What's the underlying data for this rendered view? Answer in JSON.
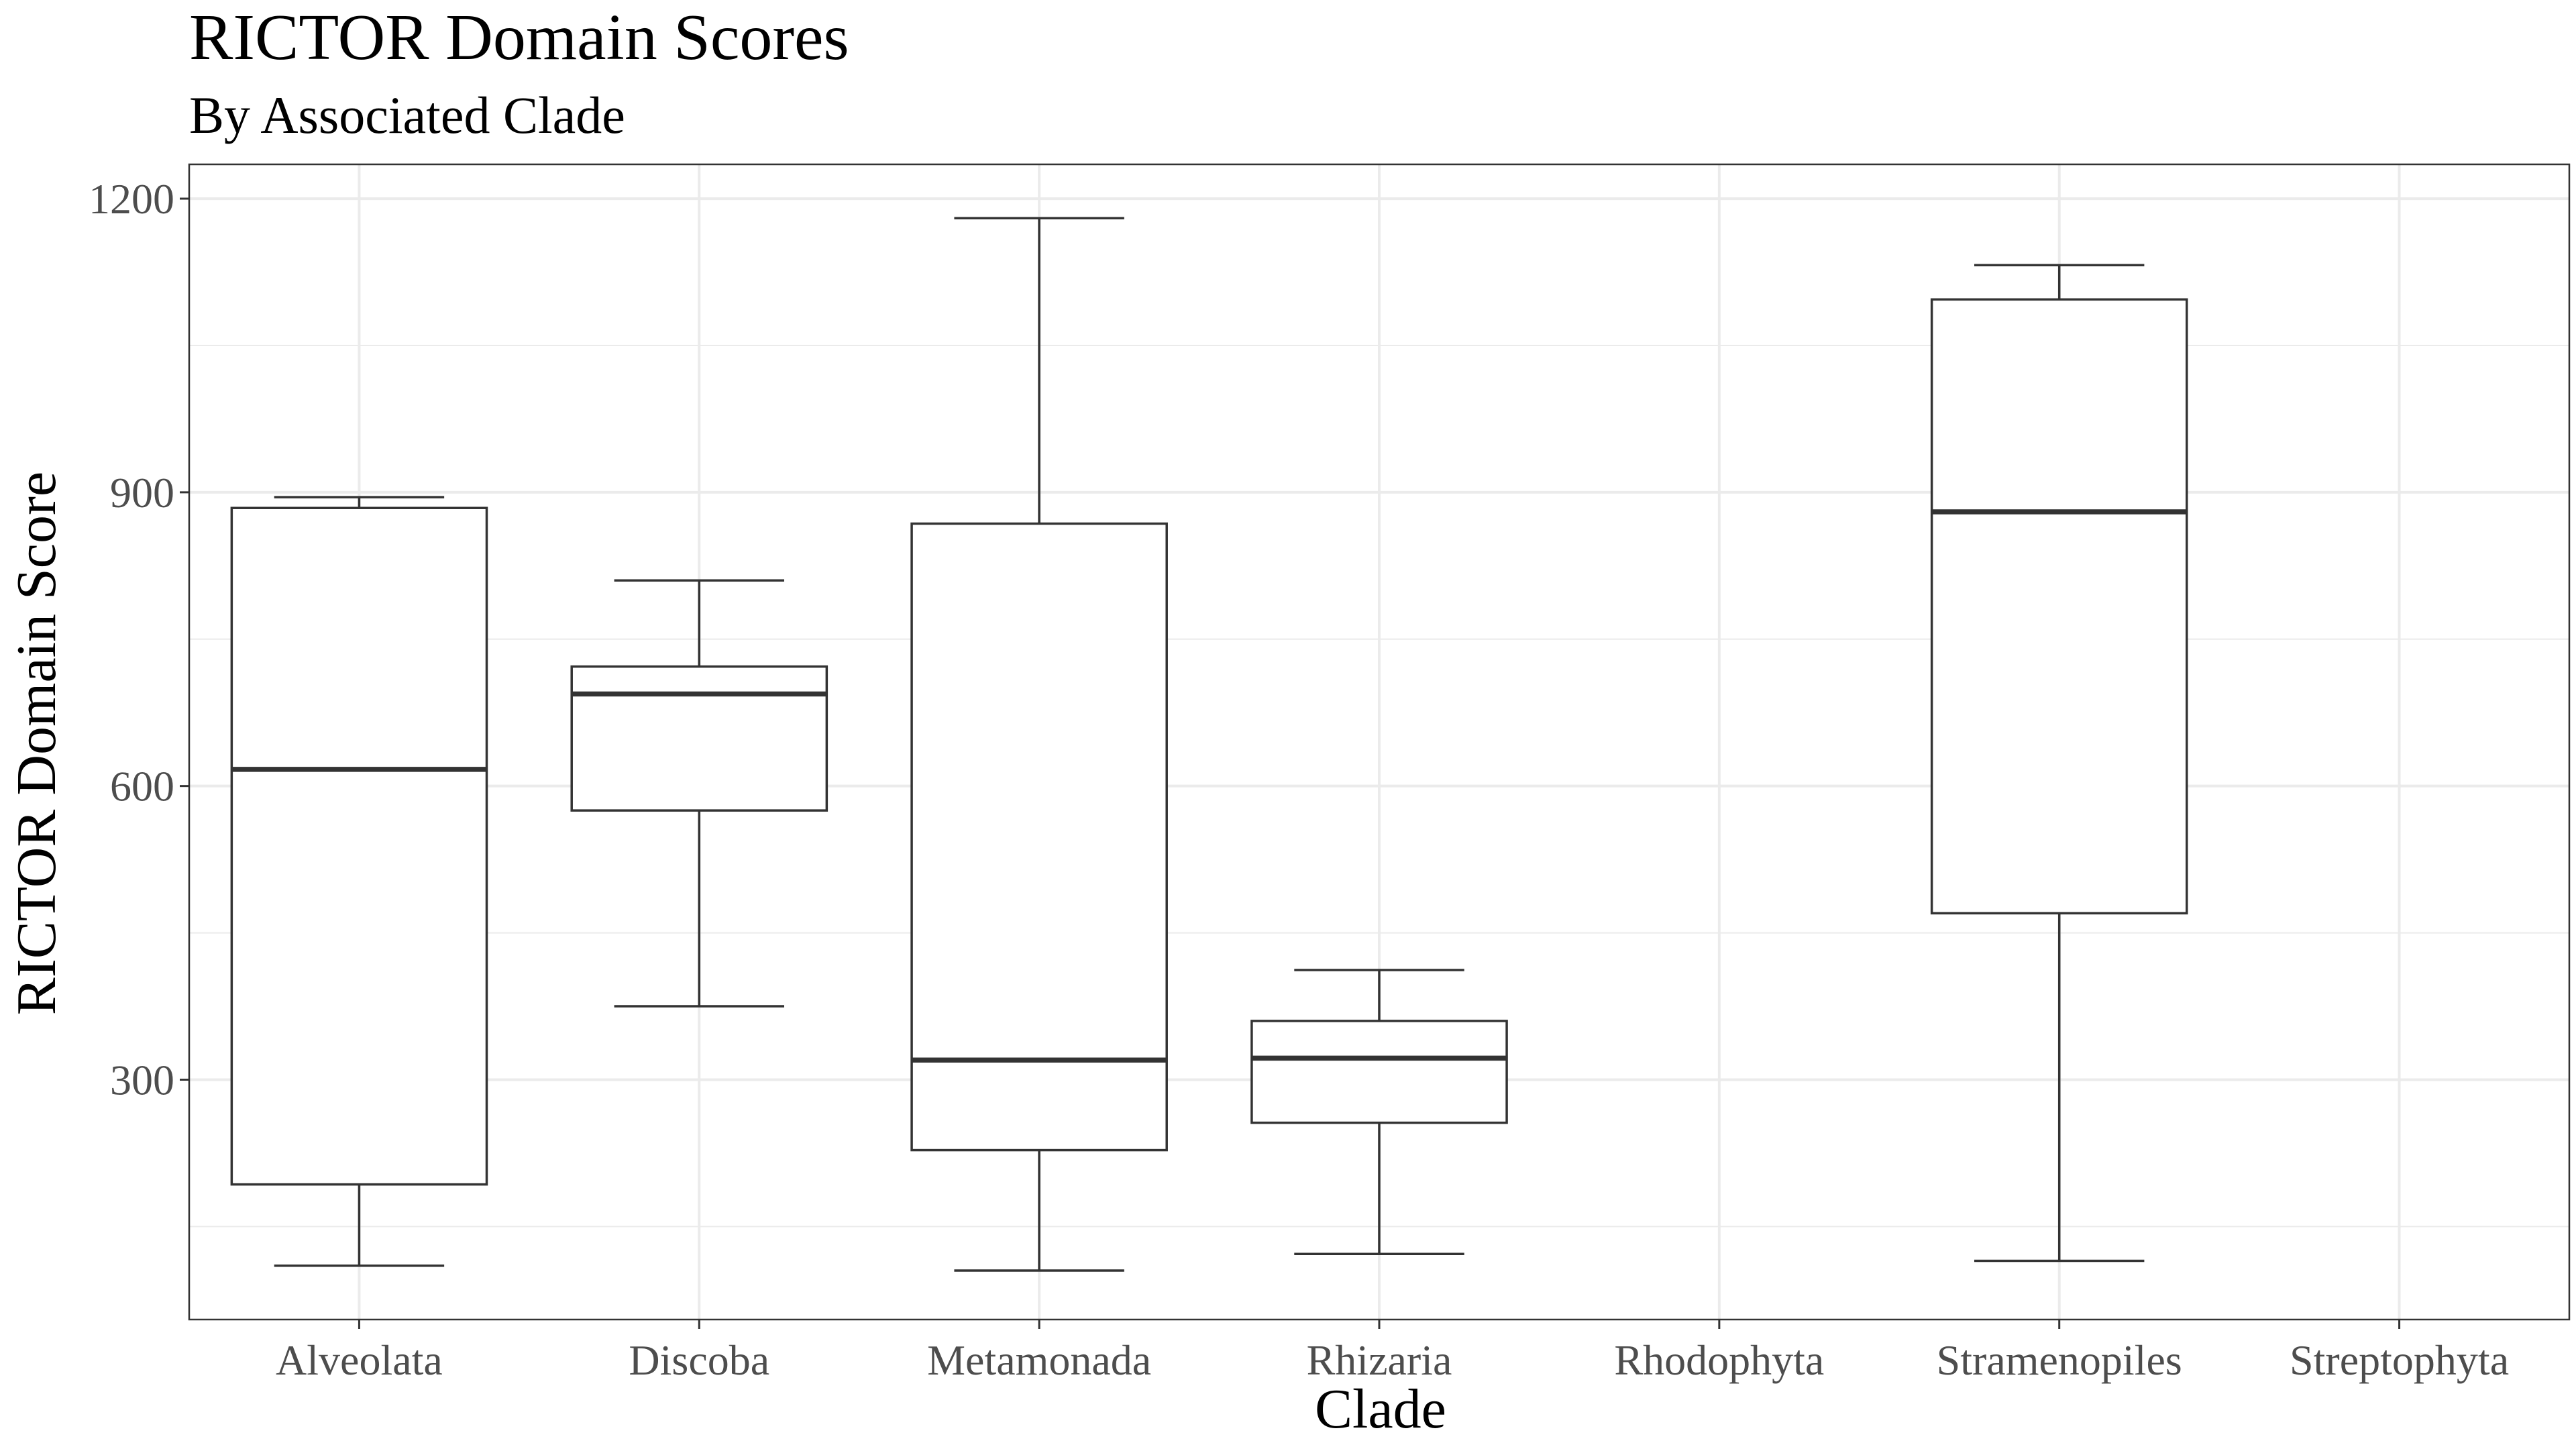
{
  "chart_data": {
    "type": "boxplot",
    "title": "RICTOR Domain Scores",
    "subtitle": "By Associated Clade",
    "xlabel": "Clade",
    "ylabel": "RICTOR Domain Score",
    "categories": [
      "Alveolata",
      "Discoba",
      "Metamonada",
      "Rhizaria",
      "Rhodophyta",
      "Stramenopiles",
      "Streptophyta"
    ],
    "boxes": [
      {
        "category": "Alveolata",
        "min": 110,
        "q1": 193,
        "median": 617,
        "q3": 884,
        "max": 895
      },
      {
        "category": "Discoba",
        "min": 375,
        "q1": 575,
        "median": 694,
        "q3": 722,
        "max": 810
      },
      {
        "category": "Metamonada",
        "min": 105,
        "q1": 228,
        "median": 320,
        "q3": 868,
        "max": 1180
      },
      {
        "category": "Rhizaria",
        "min": 122,
        "q1": 256,
        "median": 322,
        "q3": 360,
        "max": 412
      },
      {
        "category": "Rhodophyta",
        "empty": true
      },
      {
        "category": "Stramenopiles",
        "min": 115,
        "q1": 470,
        "median": 880,
        "q3": 1097,
        "max": 1132
      },
      {
        "category": "Streptophyta",
        "empty": true
      }
    ],
    "ylim": [
      55,
      1235
    ],
    "yticks": [
      300,
      600,
      900,
      1200
    ],
    "yminor": [
      150,
      450,
      750,
      1050
    ],
    "grid": true,
    "legend": "none",
    "colors": {
      "box_stroke": "#333333",
      "grid": "#ebebeb",
      "panel_border": "#333333",
      "tick_text": "#4d4d4d"
    }
  }
}
